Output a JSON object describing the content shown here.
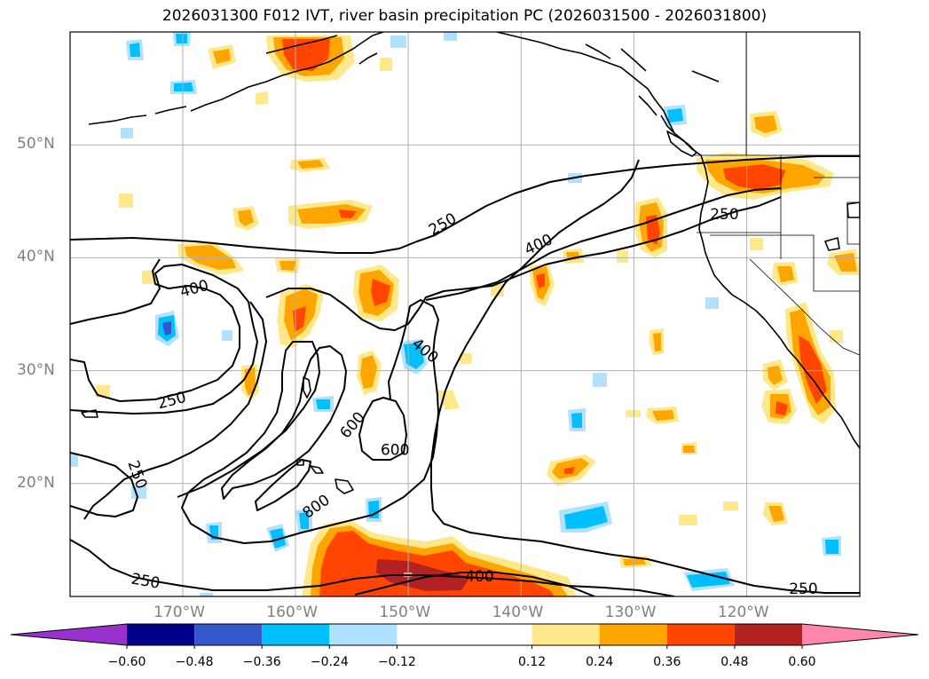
{
  "title": "2026031300 F012 IVT, river basin precipitation PC (2026031500 - 2026031800)",
  "map": {
    "projection": "PlateCarree",
    "lon_range": [
      -180,
      -110
    ],
    "lat_range": [
      10,
      60
    ],
    "grid": true,
    "lat_labels": [
      {
        "lat": 50,
        "text": "50°N"
      },
      {
        "lat": 40,
        "text": "40°N"
      },
      {
        "lat": 30,
        "text": "30°N"
      },
      {
        "lat": 20,
        "text": "20°N"
      }
    ],
    "lon_labels": [
      {
        "lon": -170,
        "text": "170°W"
      },
      {
        "lon": -160,
        "text": "160°W"
      },
      {
        "lon": -150,
        "text": "150°W"
      },
      {
        "lon": -140,
        "text": "140°W"
      },
      {
        "lon": -130,
        "text": "130°W"
      },
      {
        "lon": -120,
        "text": "120°W"
      }
    ],
    "ivt_contour_labels": [
      {
        "text": "250",
        "lon": -147,
        "lat": 43,
        "angle": -30
      },
      {
        "text": "400",
        "lon": -138.5,
        "lat": 41.2,
        "angle": -25
      },
      {
        "text": "250",
        "lon": -122,
        "lat": 43.9,
        "angle": 0
      },
      {
        "text": "400",
        "lon": -169,
        "lat": 37.3,
        "angle": -15
      },
      {
        "text": "400",
        "lon": -148.5,
        "lat": 31.8,
        "angle": 40
      },
      {
        "text": "250",
        "lon": -171,
        "lat": 27.4,
        "angle": -15
      },
      {
        "text": "600",
        "lon": -155,
        "lat": 25.2,
        "angle": -50
      },
      {
        "text": "600",
        "lon": -151.2,
        "lat": 23.0,
        "angle": 0
      },
      {
        "text": "250",
        "lon": -174,
        "lat": 20.8,
        "angle": 70
      },
      {
        "text": "800",
        "lon": -158.2,
        "lat": 18.0,
        "angle": -35
      },
      {
        "text": "250",
        "lon": -173.3,
        "lat": 11.4,
        "angle": 10
      },
      {
        "text": "400",
        "lon": -143.7,
        "lat": 11.8,
        "angle": 0
      },
      {
        "text": "250",
        "lon": -115,
        "lat": 10.7,
        "angle": 0
      }
    ]
  },
  "colorbar": {
    "boundaries": [
      -0.72,
      -0.6,
      -0.48,
      -0.36,
      -0.24,
      -0.12,
      0.12,
      0.24,
      0.36,
      0.48,
      0.6,
      0.72
    ],
    "tick_labels": [
      "−0.60",
      "−0.48",
      "−0.36",
      "−0.24",
      "−0.12",
      "0.12",
      "0.24",
      "0.36",
      "0.48",
      "0.60"
    ],
    "colors": {
      "under": "#9932cc",
      "bins": [
        "#9932cc",
        "#00008b",
        "#3458cc",
        "#00bfff",
        "#b0e2ff",
        "#ffffff",
        "#ffe88a",
        "#ffa500",
        "#ff4500",
        "#b22222",
        "#ff88aa"
      ],
      "over": "#ff88aa"
    },
    "extend": "both"
  }
}
